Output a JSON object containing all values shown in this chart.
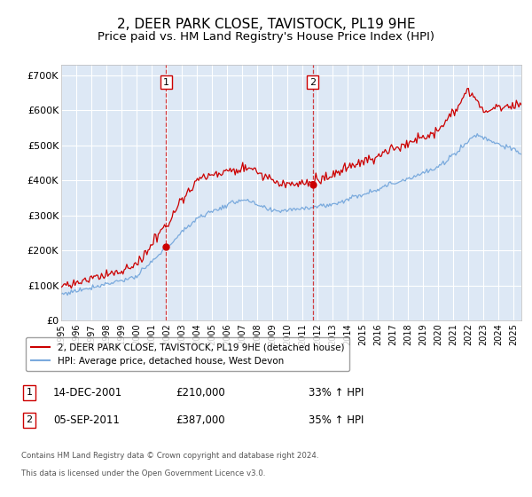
{
  "title": "2, DEER PARK CLOSE, TAVISTOCK, PL19 9HE",
  "subtitle": "Price paid vs. HM Land Registry's House Price Index (HPI)",
  "title_fontsize": 11,
  "subtitle_fontsize": 9.5,
  "ylabel_ticks": [
    "£0",
    "£100K",
    "£200K",
    "£300K",
    "£400K",
    "£500K",
    "£600K",
    "£700K"
  ],
  "ytick_values": [
    0,
    100000,
    200000,
    300000,
    400000,
    500000,
    600000,
    700000
  ],
  "ylim": [
    0,
    730000
  ],
  "xlim_start": 1995.0,
  "xlim_end": 2025.5,
  "background_color": "#ffffff",
  "plot_bg_color": "#dde8f5",
  "grid_color": "#ffffff",
  "hpi_line_color": "#7aaadd",
  "price_line_color": "#cc0000",
  "sale1_x": 2001.958,
  "sale1_y": 210000,
  "sale1_label": "1",
  "sale1_date": "14-DEC-2001",
  "sale1_price": "£210,000",
  "sale1_hpi": "33% ↑ HPI",
  "sale2_x": 2011.673,
  "sale2_y": 387000,
  "sale2_label": "2",
  "sale2_date": "05-SEP-2011",
  "sale2_price": "£387,000",
  "sale2_hpi": "35% ↑ HPI",
  "legend_line1": "2, DEER PARK CLOSE, TAVISTOCK, PL19 9HE (detached house)",
  "legend_line2": "HPI: Average price, detached house, West Devon",
  "footer1": "Contains HM Land Registry data © Crown copyright and database right 2024.",
  "footer2": "This data is licensed under the Open Government Licence v3.0."
}
